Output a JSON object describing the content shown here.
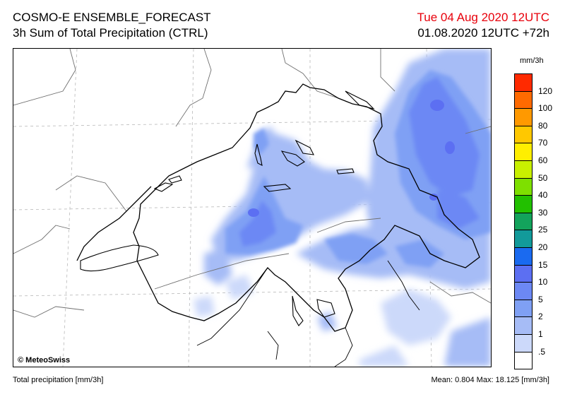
{
  "header": {
    "title_line1": "COSMO-E ENSEMBLE_FORECAST",
    "title_line2": "3h Sum of Total Precipitation (CTRL)",
    "valid_time": "Tue 04 Aug 2020 12UTC",
    "run_info": "01.08.2020 12UTC +72h"
  },
  "map": {
    "copyright": "© MeteoSwiss"
  },
  "legend": {
    "unit": "mm/3h",
    "levels": [
      {
        "label": "120",
        "color": "#ff2a00"
      },
      {
        "label": "100",
        "color": "#ff6a00"
      },
      {
        "label": "80",
        "color": "#ff9900"
      },
      {
        "label": "70",
        "color": "#ffc800"
      },
      {
        "label": "60",
        "color": "#ffef00"
      },
      {
        "label": "50",
        "color": "#c8f000"
      },
      {
        "label": "40",
        "color": "#7ee000"
      },
      {
        "label": "30",
        "color": "#22c000"
      },
      {
        "label": "25",
        "color": "#13a35c"
      },
      {
        "label": "20",
        "color": "#129a9a"
      },
      {
        "label": "15",
        "color": "#1a6af0"
      },
      {
        "label": "10",
        "color": "#5c6ff2"
      },
      {
        "label": "5",
        "color": "#6c88f4"
      },
      {
        "label": "2",
        "color": "#7fa0f4"
      },
      {
        "label": "1",
        "color": "#a6bcf6"
      },
      {
        "label": ".5",
        "color": "#ccd9fa"
      },
      {
        "label": "",
        "color": "#ffffff"
      }
    ]
  },
  "footer": {
    "left": "Total precipitation [mm/3h]",
    "right": "Mean:  0.804 Max:  18.125 [mm/3h]"
  }
}
